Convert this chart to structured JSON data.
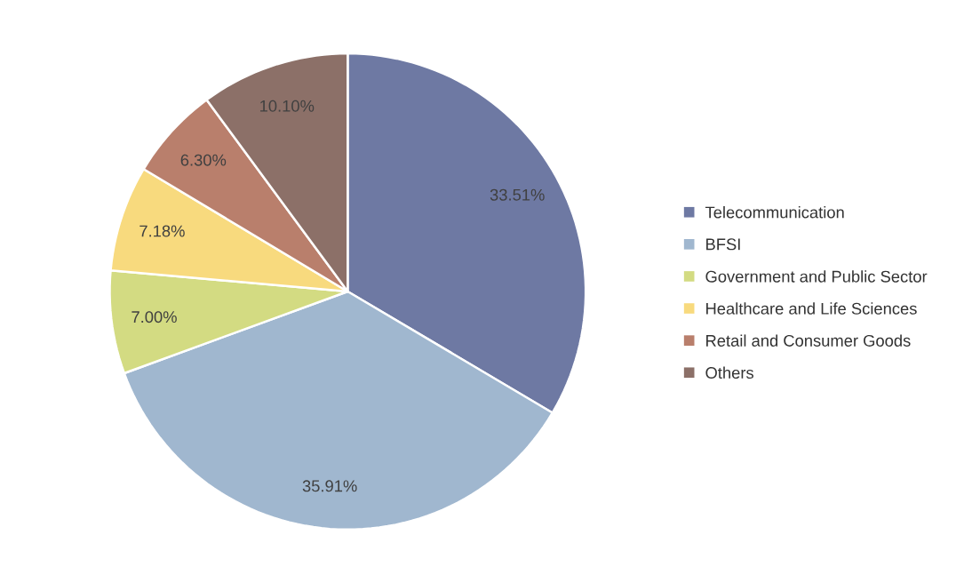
{
  "chart_data": {
    "type": "pie",
    "categories": [
      "Telecommunication",
      "BFSI",
      "Government and Public Sector",
      "Healthcare and Life Sciences",
      "Retail and Consumer Goods",
      "Others"
    ],
    "values": [
      33.51,
      35.91,
      7.0,
      7.18,
      6.3,
      10.1
    ],
    "colors": [
      "#6e79a3",
      "#a0b7cf",
      "#d3db82",
      "#f8da7e",
      "#b97f6c",
      "#8c7068"
    ],
    "value_labels": [
      "33.51%",
      "35.91%",
      "7.00%",
      "7.18%",
      "6.30%",
      "10.10%"
    ],
    "legend": "right"
  }
}
